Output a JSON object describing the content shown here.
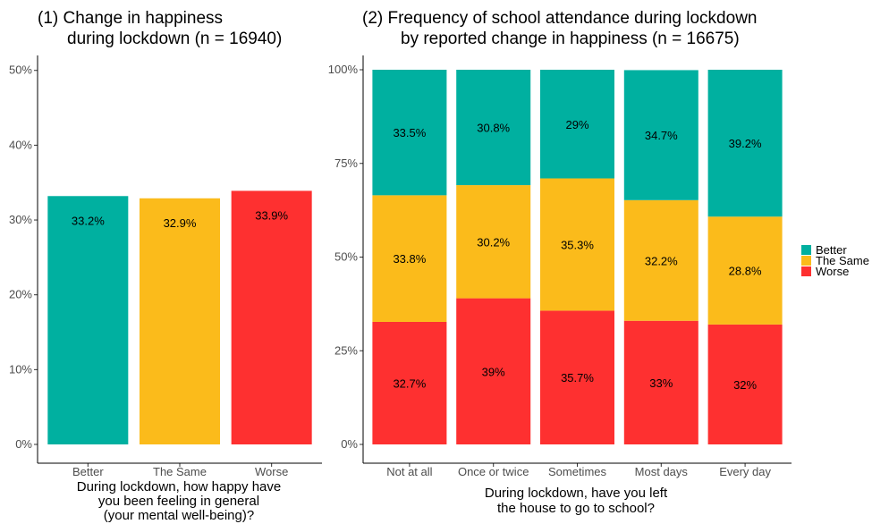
{
  "colors": {
    "Better": "#00B0A0",
    "The Same": "#FBBB1B",
    "Worse": "#FE3030"
  },
  "chart_data": [
    {
      "type": "bar",
      "title_lines": [
        "(1) Change in happiness",
        "during lockdown (n = 16940)"
      ],
      "categories": [
        "Better",
        "The Same",
        "Worse"
      ],
      "values": [
        33.2,
        32.9,
        33.9
      ],
      "labels": [
        "33.2%",
        "32.9%",
        "33.9%"
      ],
      "xlabel_lines": [
        "During lockdown, how happy have",
        "you been feeling in general",
        "(your mental well-being)?"
      ],
      "ylabel": "",
      "ylim": [
        0,
        52
      ],
      "yticks": [
        0,
        10,
        20,
        30,
        40,
        50
      ],
      "ytick_labels": [
        "0%",
        "10%",
        "20%",
        "30%",
        "40%",
        "50%"
      ],
      "grid": false
    },
    {
      "type": "stacked-bar",
      "title_lines": [
        "(2) Frequency of school attendance during lockdown",
        "by reported change in happiness (n = 16675)"
      ],
      "categories": [
        "Not at all",
        "Once or twice",
        "Sometimes",
        "Most days",
        "Every day"
      ],
      "series": [
        {
          "name": "Worse",
          "values": [
            32.7,
            39,
            35.7,
            33,
            32
          ],
          "labels": [
            "32.7%",
            "39%",
            "35.7%",
            "33%",
            "32%"
          ]
        },
        {
          "name": "The Same",
          "values": [
            33.8,
            30.2,
            35.3,
            32.2,
            28.8
          ],
          "labels": [
            "33.8%",
            "30.2%",
            "35.3%",
            "32.2%",
            "28.8%"
          ]
        },
        {
          "name": "Better",
          "values": [
            33.5,
            30.8,
            29,
            34.7,
            39.2
          ],
          "labels": [
            "33.5%",
            "30.8%",
            "29%",
            "34.7%",
            "39.2%"
          ]
        }
      ],
      "xlabel_lines": [
        "During lockdown, have you left",
        "the house to go to school?"
      ],
      "ylabel": "",
      "ylim": [
        0,
        100
      ],
      "yticks": [
        0,
        25,
        50,
        75,
        100
      ],
      "ytick_labels": [
        "0%",
        "25%",
        "50%",
        "75%",
        "100%"
      ],
      "grid": false,
      "legend": {
        "position": "right",
        "entries": [
          "Better",
          "The Same",
          "Worse"
        ]
      }
    }
  ]
}
